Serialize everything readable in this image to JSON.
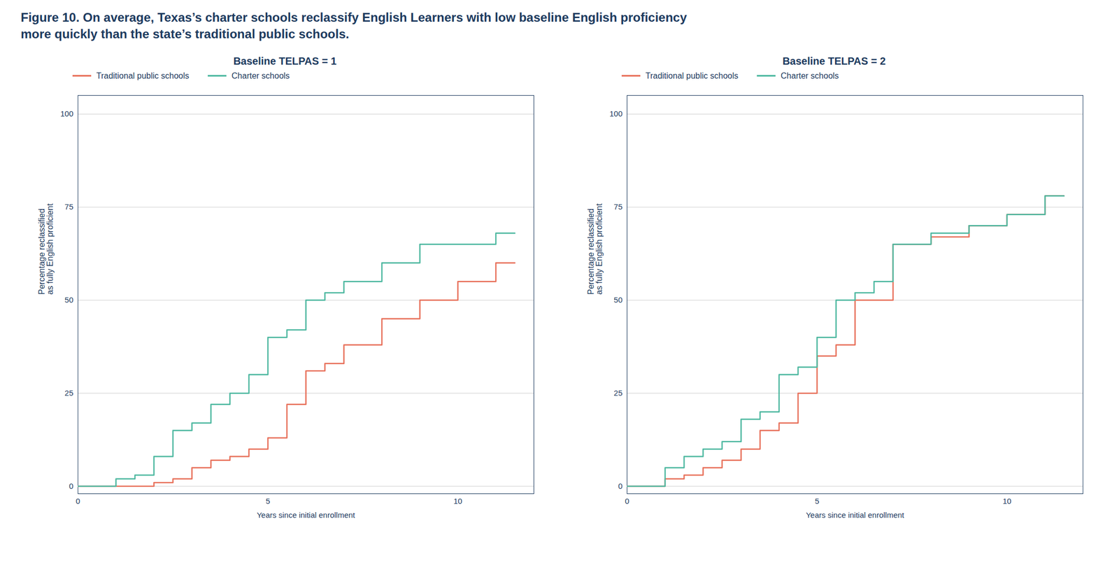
{
  "chart_data": [
    {
      "type": "step",
      "title": "Figure 10. On average, Texas’s charter schools reclassify English Learners with low baseline English proficiency\nmore quickly than the state’s traditional public schools.",
      "subtitle": "Baseline TELPAS = 1",
      "xlabel": "Years since initial enrollment",
      "ylabel": "Percentage reclassified\nas fully English proficient",
      "xlim": [
        0,
        12
      ],
      "ylim": [
        -2,
        105
      ],
      "xticks": [
        0,
        5,
        10
      ],
      "yticks": [
        0,
        25,
        50,
        75,
        100
      ],
      "grid": "y",
      "legend": "top",
      "series": [
        {
          "name": "Traditional public schools",
          "color": "#e8705a",
          "x": [
            0,
            1,
            2,
            2.5,
            3,
            3.5,
            4,
            4.5,
            5,
            5.5,
            6,
            6.5,
            7,
            8,
            9,
            10,
            11,
            11.5
          ],
          "values": [
            0,
            0,
            1,
            2,
            5,
            7,
            8,
            10,
            13,
            22,
            31,
            33,
            38,
            45,
            50,
            55,
            60,
            60
          ]
        },
        {
          "name": "Charter schools",
          "color": "#4db8a0",
          "x": [
            0,
            1,
            1.5,
            2,
            2.5,
            3,
            3.5,
            4,
            4.5,
            5,
            5.5,
            6,
            6.5,
            7,
            8,
            9,
            10,
            11,
            11.5
          ],
          "values": [
            0,
            2,
            3,
            8,
            15,
            17,
            22,
            25,
            30,
            40,
            42,
            50,
            52,
            55,
            60,
            65,
            65,
            68,
            68
          ]
        }
      ]
    },
    {
      "type": "step",
      "subtitle": "Baseline TELPAS = 2",
      "xlabel": "Years since initial enrollment",
      "ylabel": "Percentage reclassified\nas fully English proficient",
      "xlim": [
        0,
        12
      ],
      "ylim": [
        -2,
        105
      ],
      "xticks": [
        0,
        5,
        10
      ],
      "yticks": [
        0,
        25,
        50,
        75,
        100
      ],
      "grid": "y",
      "legend": "top",
      "series": [
        {
          "name": "Traditional public schools",
          "color": "#e8705a",
          "x": [
            0,
            1,
            1.5,
            2,
            2.5,
            3,
            3.5,
            4,
            4.5,
            5,
            5.5,
            6,
            6.5,
            7,
            8,
            9,
            10,
            11,
            11.5
          ],
          "values": [
            0,
            2,
            3,
            5,
            7,
            10,
            15,
            17,
            25,
            35,
            38,
            50,
            50,
            65,
            67,
            70,
            73,
            78,
            78
          ]
        },
        {
          "name": "Charter schools",
          "color": "#4db8a0",
          "x": [
            0,
            1,
            1.5,
            2,
            2.5,
            3,
            3.5,
            4,
            4.5,
            5,
            5.5,
            6,
            6.5,
            7,
            8,
            9,
            10,
            11,
            11.5
          ],
          "values": [
            0,
            5,
            8,
            10,
            12,
            18,
            20,
            30,
            32,
            40,
            50,
            52,
            55,
            65,
            68,
            70,
            73,
            78,
            78
          ]
        }
      ]
    }
  ]
}
